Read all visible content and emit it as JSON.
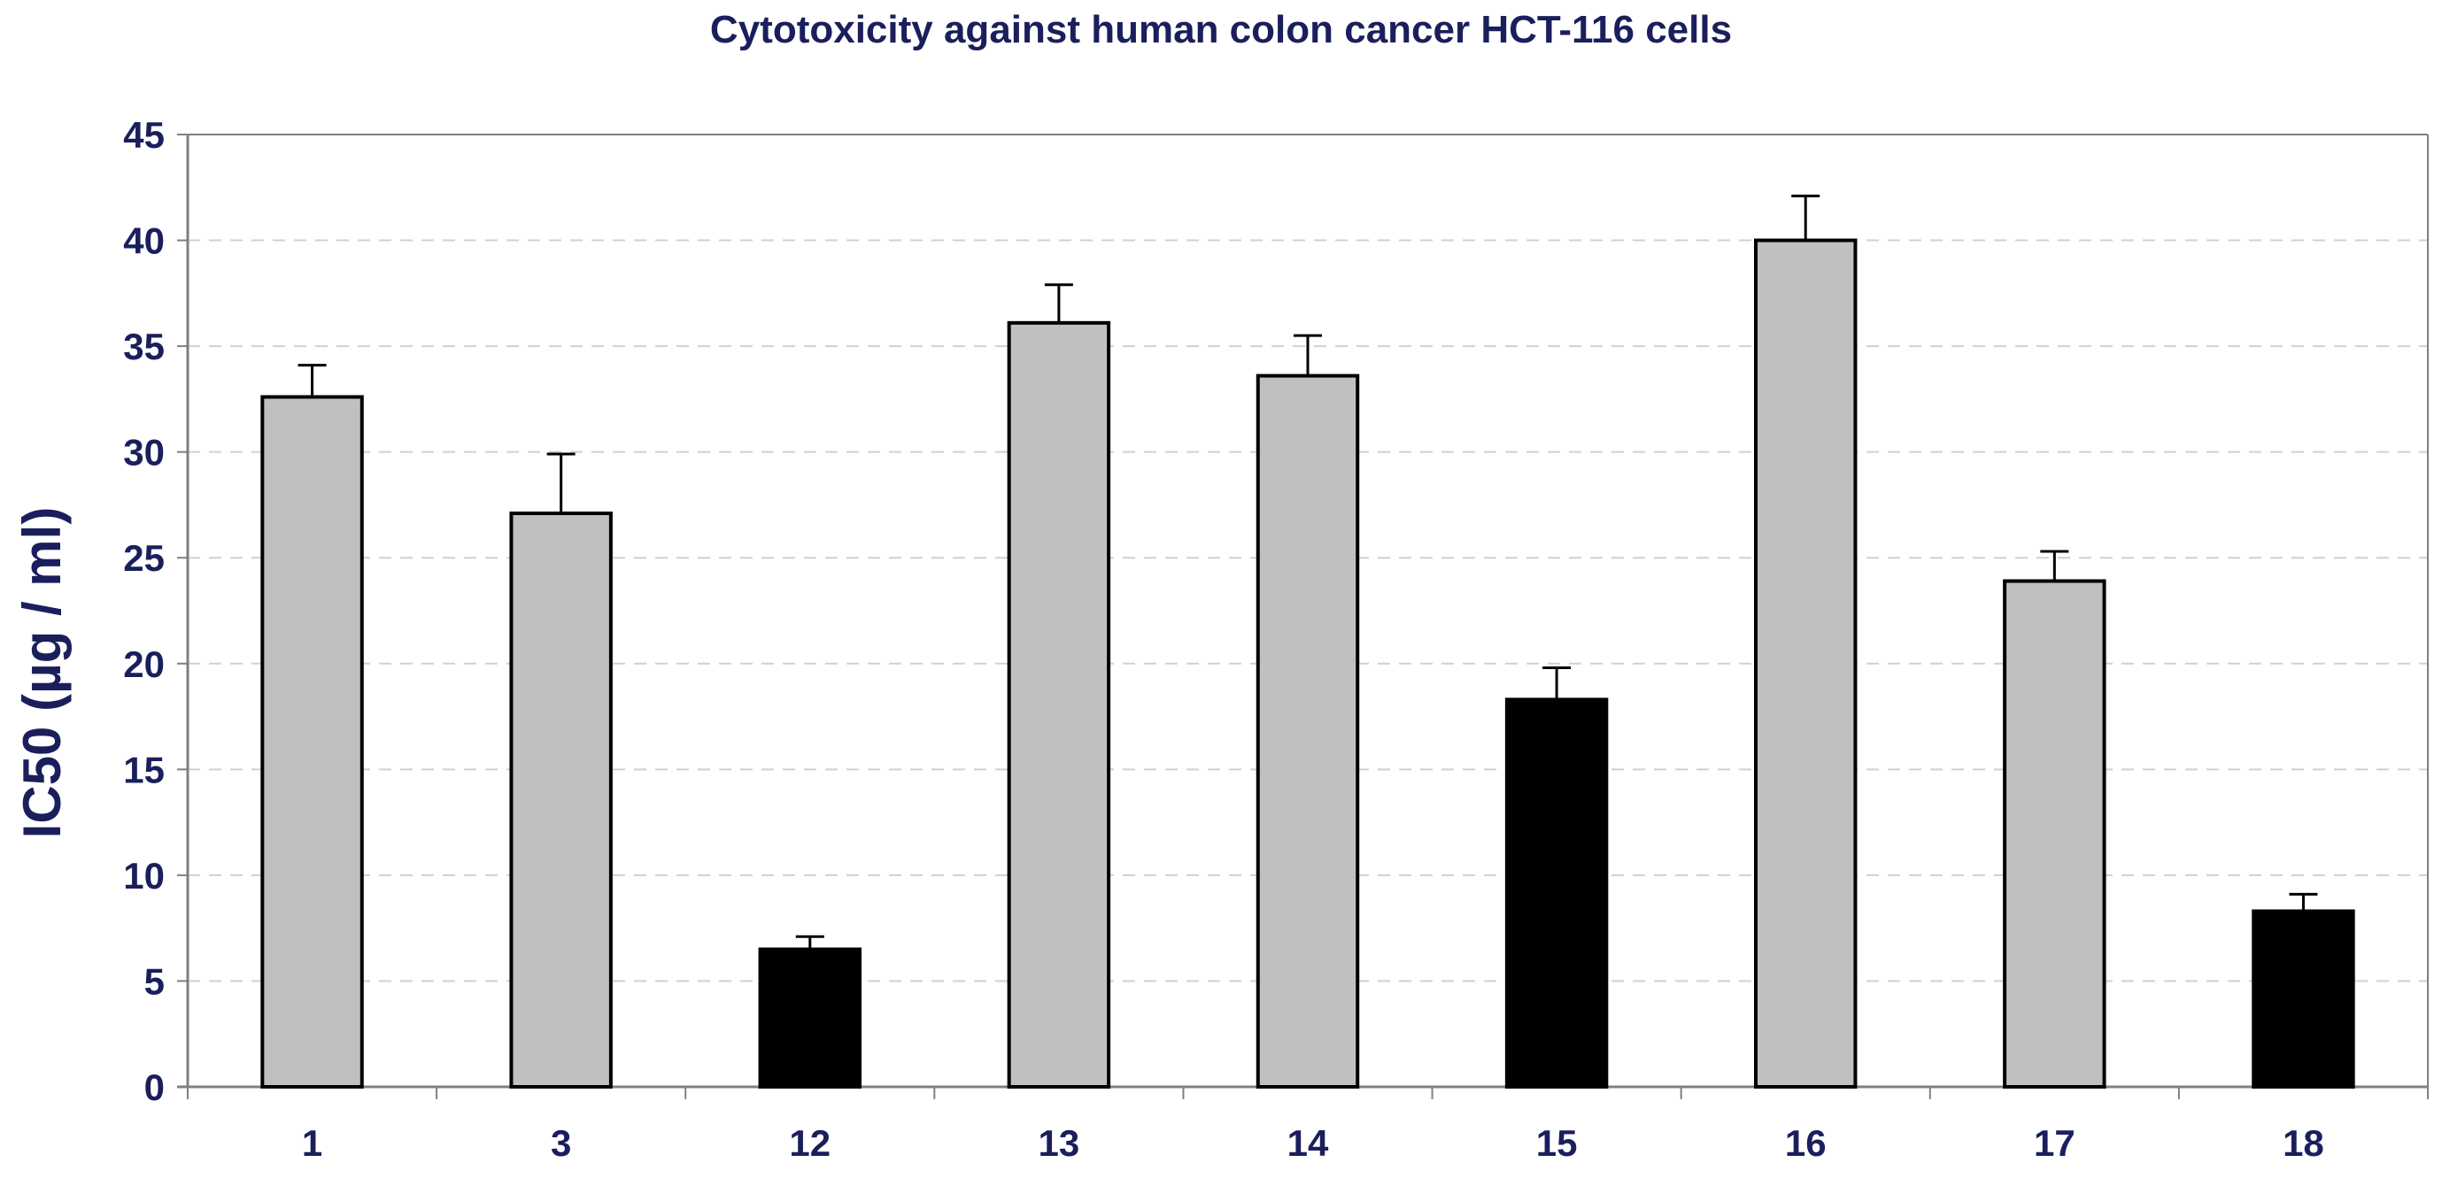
{
  "chart_data": {
    "type": "bar",
    "title": "Cytotoxicity against human colon cancer HCT-116 cells",
    "xlabel": "",
    "ylabel": "IC50 (µg / ml)",
    "ylim": [
      0,
      45
    ],
    "yticks": [
      0,
      5,
      10,
      15,
      20,
      25,
      30,
      35,
      40,
      45
    ],
    "grid": true,
    "categories": [
      "1",
      "3",
      "12",
      "13",
      "14",
      "15",
      "16",
      "17",
      "18"
    ],
    "values": [
      32.6,
      27.1,
      6.5,
      36.1,
      33.6,
      18.3,
      40.0,
      23.9,
      8.3
    ],
    "errors": [
      1.5,
      2.8,
      0.6,
      1.8,
      1.9,
      1.5,
      2.1,
      1.4,
      0.8
    ],
    "bar_colors": [
      "#c0c0c0",
      "#c0c0c0",
      "#000000",
      "#c0c0c0",
      "#c0c0c0",
      "#000000",
      "#c0c0c0",
      "#c0c0c0",
      "#000000"
    ]
  },
  "colors": {
    "text": "#1a1f5c",
    "axis": "#808080",
    "grid": "#d0d0d0",
    "bar_outline": "#000000"
  }
}
